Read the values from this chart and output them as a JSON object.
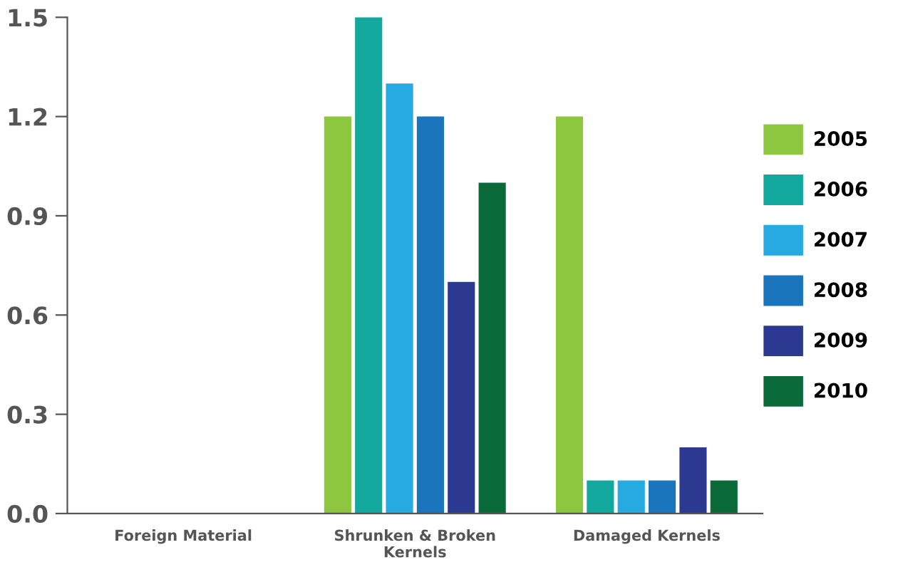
{
  "chart_data": {
    "type": "bar",
    "categories": [
      "Foreign Material",
      "Shrunken & Broken\nKernels",
      "Damaged Kernels"
    ],
    "series": [
      {
        "name": "2005",
        "color": "#8dc63f",
        "values": [
          0,
          1.2,
          1.2
        ]
      },
      {
        "name": "2006",
        "color": "#12a89d",
        "values": [
          0,
          1.5,
          0.1
        ]
      },
      {
        "name": "2007",
        "color": "#27aae1",
        "values": [
          0,
          1.3,
          0.1
        ]
      },
      {
        "name": "2008",
        "color": "#1b75bc",
        "values": [
          0,
          1.2,
          0.1
        ]
      },
      {
        "name": "2009",
        "color": "#2b3990",
        "values": [
          0,
          0.7,
          0.2
        ]
      },
      {
        "name": "2010",
        "color": "#0b6a3a",
        "values": [
          0,
          1.0,
          0.1
        ]
      }
    ],
    "ylim": [
      0,
      1.5
    ],
    "yticks": [
      {
        "value": 0,
        "label": "0.0"
      },
      {
        "value": 0.3,
        "label": "0.3"
      },
      {
        "value": 0.6,
        "label": "0.6"
      },
      {
        "value": 0.9,
        "label": "0.9"
      },
      {
        "value": 1.2,
        "label": "1.2"
      },
      {
        "value": 1.5,
        "label": "1.5"
      }
    ],
    "grid": false,
    "legend": "right"
  }
}
